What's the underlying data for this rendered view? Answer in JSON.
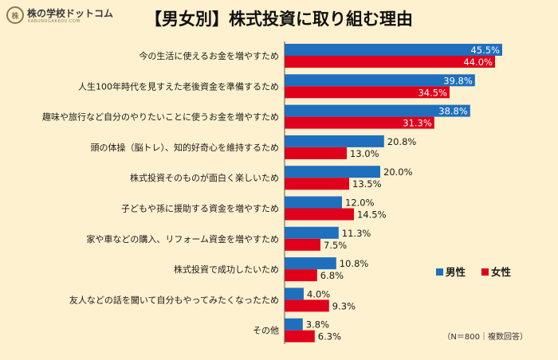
{
  "logo": {
    "icon_text": "株",
    "text": "株の学校ドットコム",
    "sub": "KABUNOGAKKOU.COM"
  },
  "title": "【男女別】株式投資に取り組む理由",
  "note": "（N＝800｜複数回答）",
  "colors": {
    "male": "#1f6fbf",
    "female": "#e0001b",
    "background": "#fdf1cf"
  },
  "chart_data": {
    "type": "bar",
    "orientation": "horizontal",
    "categories": [
      "今の生活に使えるお金を増やすため",
      "人生100年時代を見すえた老後資金を準備するため",
      "趣味や旅行など自分のやりたいことに使うお金を増やすため",
      "頭の体操（脳トレ）、知的好奇心を維持するため",
      "株式投資そのものが面白く楽しいため",
      "子どもや孫に援助する資金を増やすため",
      "家や車などの購入、リフォーム資金を増やすため",
      "株式投資で成功したいため",
      "友人などの話を聞いて自分もやってみたくなったため",
      "その他"
    ],
    "series": [
      {
        "name": "男性",
        "color": "#1f6fbf",
        "values": [
          45.5,
          39.8,
          38.8,
          20.8,
          20.0,
          12.0,
          11.3,
          10.8,
          4.0,
          3.8
        ],
        "labels": [
          "45.5%",
          "39.8%",
          "38.8%",
          "20.8%",
          "20.0%",
          "12.0%",
          "11.3%",
          "10.8%",
          "4.0%",
          "3.8%"
        ]
      },
      {
        "name": "女性",
        "color": "#e0001b",
        "values": [
          44.0,
          34.5,
          31.3,
          13.0,
          13.5,
          14.5,
          7.5,
          6.8,
          9.3,
          6.3
        ],
        "labels": [
          "44.0%",
          "34.5%",
          "31.3%",
          "13.0%",
          "13.5%",
          "14.5%",
          "7.5%",
          "6.8%",
          "9.3%",
          "6.3%"
        ]
      }
    ],
    "xlim": [
      0,
      50
    ],
    "legend_position": "right",
    "grid": false
  }
}
